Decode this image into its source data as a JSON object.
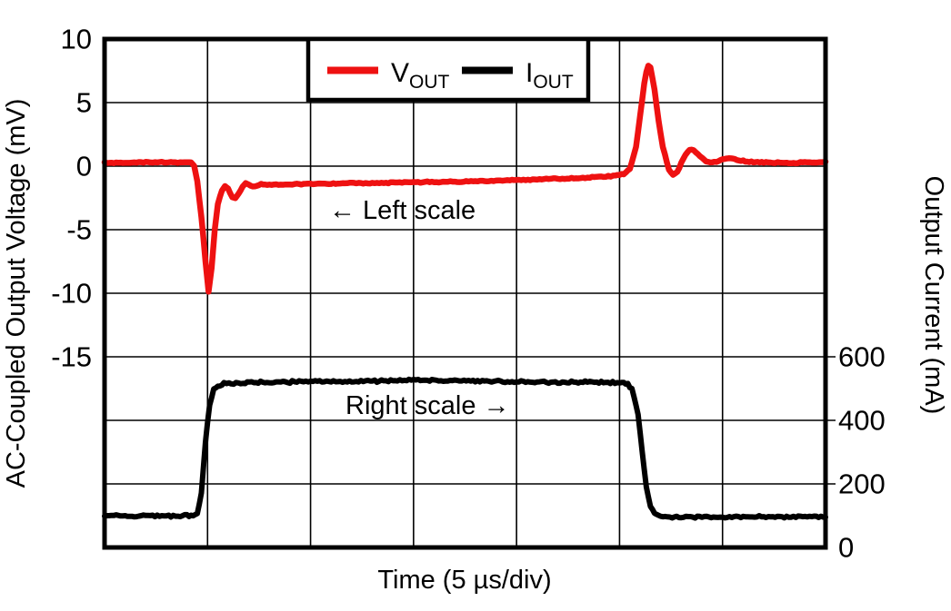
{
  "figure": {
    "background": "#ffffff",
    "frame_color": "#000000",
    "grid_color": "#000000"
  },
  "chart_data": {
    "type": "line",
    "title": "",
    "xlabel": "Time (5 µs/div)",
    "ylabel_left": "AC-Coupled Output Voltage (mV)",
    "ylabel_right": "Output Current (mA)",
    "x_divisions": 7,
    "y_divisions": 8,
    "x_range_us": [
      0,
      35
    ],
    "grid": true,
    "left_axis": {
      "units": "mV",
      "ticks": [
        10,
        5,
        0,
        -5,
        -10,
        -15
      ],
      "top_value": 10,
      "mv_per_div": 5
    },
    "right_axis": {
      "units": "mA",
      "ticks": [
        600,
        400,
        200,
        0
      ],
      "bottom_value": 0,
      "ma_per_div": 200
    },
    "legend": {
      "position": "top-center",
      "items": [
        {
          "main": "V",
          "sub": "OUT",
          "color": "#ee1111"
        },
        {
          "main": "I",
          "sub": "OUT",
          "color": "#000000"
        }
      ]
    },
    "annotations": [
      {
        "text": "← Left scale"
      },
      {
        "text": "Right scale →"
      }
    ],
    "series": [
      {
        "name": "VOUT",
        "axis": "left",
        "color": "#ee1111",
        "stroke_width": 6.5,
        "noise": 0.06,
        "points": [
          [
            0,
            0.25
          ],
          [
            1,
            0.25
          ],
          [
            2,
            0.3
          ],
          [
            3,
            0.3
          ],
          [
            4,
            0.3
          ],
          [
            4.2,
            0.25
          ],
          [
            4.35,
            0
          ],
          [
            4.5,
            -1.2
          ],
          [
            4.7,
            -4.0
          ],
          [
            4.9,
            -7.5
          ],
          [
            5.05,
            -9.9
          ],
          [
            5.2,
            -8.0
          ],
          [
            5.35,
            -5.0
          ],
          [
            5.5,
            -3.0
          ],
          [
            5.7,
            -1.9
          ],
          [
            5.85,
            -1.6
          ],
          [
            6.0,
            -1.8
          ],
          [
            6.2,
            -2.4
          ],
          [
            6.35,
            -2.5
          ],
          [
            6.5,
            -2.2
          ],
          [
            6.7,
            -1.6
          ],
          [
            6.85,
            -1.35
          ],
          [
            7.0,
            -1.45
          ],
          [
            7.2,
            -1.6
          ],
          [
            7.4,
            -1.55
          ],
          [
            7.6,
            -1.45
          ],
          [
            8,
            -1.45
          ],
          [
            9,
            -1.42
          ],
          [
            10,
            -1.4
          ],
          [
            12,
            -1.35
          ],
          [
            14,
            -1.3
          ],
          [
            16,
            -1.25
          ],
          [
            18,
            -1.2
          ],
          [
            20,
            -1.1
          ],
          [
            21,
            -1.05
          ],
          [
            22,
            -1.0
          ],
          [
            23,
            -0.95
          ],
          [
            24,
            -0.85
          ],
          [
            24.8,
            -0.75
          ],
          [
            25.2,
            -0.6
          ],
          [
            25.5,
            -0.2
          ],
          [
            25.8,
            1.5
          ],
          [
            26.0,
            4.0
          ],
          [
            26.2,
            6.5
          ],
          [
            26.3,
            7.4
          ],
          [
            26.4,
            7.9
          ],
          [
            26.5,
            7.8
          ],
          [
            26.7,
            6.0
          ],
          [
            26.9,
            3.5
          ],
          [
            27.1,
            1.5
          ],
          [
            27.4,
            -0.3
          ],
          [
            27.6,
            -0.7
          ],
          [
            27.8,
            -0.5
          ],
          [
            28.1,
            0.6
          ],
          [
            28.4,
            1.3
          ],
          [
            28.6,
            1.25
          ],
          [
            28.9,
            0.8
          ],
          [
            29.2,
            0.4
          ],
          [
            29.5,
            0.3
          ],
          [
            29.8,
            0.4
          ],
          [
            30.1,
            0.6
          ],
          [
            30.4,
            0.65
          ],
          [
            30.7,
            0.5
          ],
          [
            31,
            0.4
          ],
          [
            31.5,
            0.3
          ],
          [
            32,
            0.3
          ],
          [
            33,
            0.25
          ],
          [
            34,
            0.3
          ],
          [
            35,
            0.3
          ]
        ]
      },
      {
        "name": "IOUT",
        "axis": "right",
        "color": "#000000",
        "stroke_width": 6,
        "noise": 4.5,
        "points": [
          [
            0,
            100
          ],
          [
            1,
            99
          ],
          [
            2,
            100
          ],
          [
            3,
            99
          ],
          [
            4,
            100
          ],
          [
            4.3,
            100
          ],
          [
            4.5,
            106
          ],
          [
            4.7,
            170
          ],
          [
            4.9,
            330
          ],
          [
            5.1,
            450
          ],
          [
            5.3,
            495
          ],
          [
            5.5,
            508
          ],
          [
            5.8,
            515
          ],
          [
            6.5,
            518
          ],
          [
            8,
            520
          ],
          [
            10,
            522
          ],
          [
            12,
            522
          ],
          [
            14,
            525
          ],
          [
            15,
            527
          ],
          [
            16,
            525
          ],
          [
            18,
            523
          ],
          [
            20,
            522
          ],
          [
            22,
            520
          ],
          [
            24,
            520
          ],
          [
            25,
            518
          ],
          [
            25.4,
            514
          ],
          [
            25.6,
            500
          ],
          [
            25.9,
            420
          ],
          [
            26.1,
            300
          ],
          [
            26.3,
            190
          ],
          [
            26.5,
            130
          ],
          [
            26.7,
            105
          ],
          [
            27,
            98
          ],
          [
            28,
            95
          ],
          [
            29,
            96
          ],
          [
            30,
            95
          ],
          [
            32,
            97
          ],
          [
            34,
            96
          ],
          [
            35,
            97
          ]
        ]
      }
    ]
  }
}
